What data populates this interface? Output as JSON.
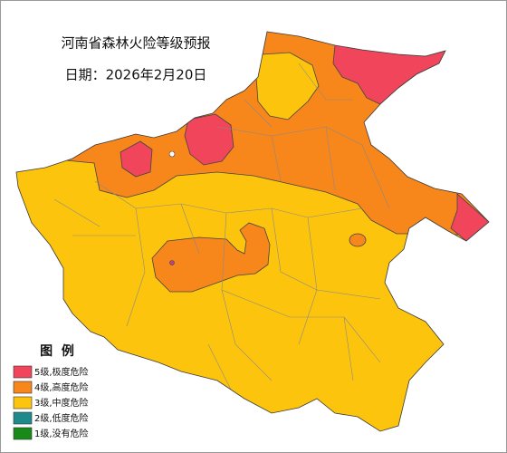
{
  "header": {
    "title": "河南省森林火险等级预报",
    "date": "日期：2026年2月20日"
  },
  "legend": {
    "title": "图  例",
    "items": [
      {
        "label": "5级,极度危险",
        "color": "#f0455b"
      },
      {
        "label": "4级,高度危险",
        "color": "#f7861b"
      },
      {
        "label": "3级,中度危险",
        "color": "#fcc40c"
      },
      {
        "label": "2级,低度危险",
        "color": "#1e8a8c"
      },
      {
        "label": "1级,没有危险",
        "color": "#178a17"
      }
    ]
  }
}
